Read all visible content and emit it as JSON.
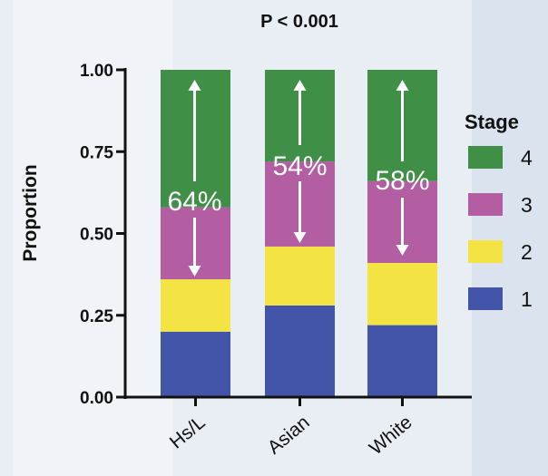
{
  "chart_data": {
    "type": "bar",
    "stacked": true,
    "title": "P < 0.001",
    "ylabel": "Proportion",
    "xlabel": "",
    "ylim": [
      0,
      1
    ],
    "yticks": [
      "0.00",
      "0.25",
      "0.50",
      "0.75",
      "1.00"
    ],
    "categories": [
      "Hs/L",
      "Asian",
      "White"
    ],
    "legend": {
      "title": "Stage",
      "placement": "right"
    },
    "series": [
      {
        "name": "1",
        "color": "#4355a8",
        "values": [
          0.2,
          0.28,
          0.22
        ]
      },
      {
        "name": "2",
        "color": "#f3e443",
        "values": [
          0.16,
          0.18,
          0.19
        ]
      },
      {
        "name": "3",
        "color": "#b35ea3",
        "values": [
          0.22,
          0.26,
          0.25
        ]
      },
      {
        "name": "4",
        "color": "#3f8f47",
        "values": [
          0.42,
          0.28,
          0.34
        ]
      }
    ],
    "annotations": [
      "64%",
      "54%",
      "58%"
    ],
    "grid": false
  }
}
